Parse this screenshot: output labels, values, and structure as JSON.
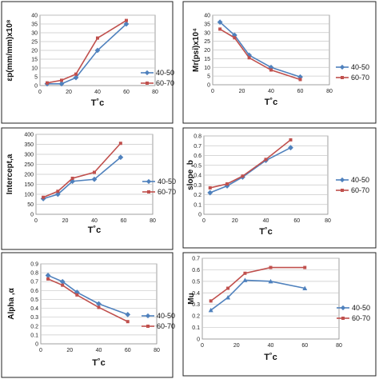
{
  "colors": {
    "series_blue": "#4f81bd",
    "series_red": "#c0504d",
    "grid": "#c8c8c8",
    "frame": "#888888"
  },
  "chart_data": [
    {
      "type": "line",
      "title": "",
      "ylabel": "εp(mm/mm)x10⁸",
      "xlabel": "T˚c",
      "xlim": [
        0,
        80
      ],
      "ylim": [
        0,
        40
      ],
      "xticks": [
        0,
        20,
        40,
        60,
        80
      ],
      "yticks": [
        0,
        5,
        10,
        15,
        20,
        25,
        30,
        35,
        40
      ],
      "grid": "horizontal",
      "legend": "right",
      "series": [
        {
          "name": "40-50",
          "x": [
            5,
            15,
            25,
            40,
            60
          ],
          "y": [
            1,
            1,
            4.5,
            20,
            35
          ]
        },
        {
          "name": "60-70",
          "x": [
            5,
            15,
            25,
            40,
            60
          ],
          "y": [
            1.5,
            3,
            6.5,
            27,
            37
          ]
        }
      ]
    },
    {
      "type": "line",
      "title": "",
      "ylabel": "Mr(psi)x10⁴",
      "xlabel": "T˚c",
      "xlim": [
        0,
        80
      ],
      "ylim": [
        0,
        40
      ],
      "xticks": [
        0,
        20,
        40,
        60,
        80
      ],
      "yticks": [
        0,
        5,
        10,
        15,
        20,
        25,
        30,
        35,
        40
      ],
      "grid": "horizontal",
      "legend": "right",
      "series": [
        {
          "name": "40-50",
          "x": [
            5,
            15,
            25,
            40,
            60
          ],
          "y": [
            36,
            28.5,
            17,
            10,
            4.5
          ]
        },
        {
          "name": "60-70",
          "x": [
            5,
            15,
            25,
            40,
            60
          ],
          "y": [
            32,
            27,
            15.5,
            8.5,
            3
          ]
        }
      ]
    },
    {
      "type": "line",
      "title": "",
      "ylabel": "Intercept,a",
      "xlabel": "T˚c",
      "xlim": [
        0,
        80
      ],
      "ylim": [
        0,
        400
      ],
      "xticks": [
        0,
        20,
        40,
        60,
        80
      ],
      "yticks": [
        0,
        50,
        100,
        150,
        200,
        250,
        300,
        350,
        400
      ],
      "grid": "horizontal",
      "legend": "right",
      "series": [
        {
          "name": "40-50",
          "x": [
            5,
            15,
            25,
            40,
            58
          ],
          "y": [
            78,
            100,
            165,
            175,
            285
          ]
        },
        {
          "name": "60-70",
          "x": [
            5,
            15,
            25,
            40,
            58
          ],
          "y": [
            85,
            115,
            180,
            210,
            355
          ]
        }
      ]
    },
    {
      "type": "line",
      "title": "",
      "ylabel": "slope ,b",
      "xlabel": "T˚c",
      "xlim": [
        0,
        80
      ],
      "ylim": [
        0,
        0.8
      ],
      "xticks": [
        0,
        20,
        40,
        60,
        80
      ],
      "yticks": [
        0,
        0.1,
        0.2,
        0.3,
        0.4,
        0.5,
        0.6,
        0.7,
        0.8
      ],
      "grid": "horizontal",
      "legend": "right",
      "series": [
        {
          "name": "40-50",
          "x": [
            4,
            15,
            25,
            40,
            56
          ],
          "y": [
            0.22,
            0.29,
            0.38,
            0.55,
            0.68
          ]
        },
        {
          "name": "60-70",
          "x": [
            4,
            15,
            25,
            40,
            56
          ],
          "y": [
            0.27,
            0.31,
            0.39,
            0.56,
            0.76
          ]
        }
      ]
    },
    {
      "type": "line",
      "title": "",
      "ylabel": "Alpha ,α",
      "xlabel": "T˚c",
      "xlim": [
        0,
        80
      ],
      "ylim": [
        0,
        0.9
      ],
      "xticks": [
        0,
        20,
        40,
        60,
        80
      ],
      "yticks": [
        0,
        0.1,
        0.2,
        0.3,
        0.4,
        0.5,
        0.6,
        0.7,
        0.8,
        0.9
      ],
      "grid": "horizontal",
      "legend": "right",
      "series": [
        {
          "name": "40-50",
          "x": [
            5,
            15,
            25,
            40,
            60
          ],
          "y": [
            0.77,
            0.7,
            0.58,
            0.45,
            0.33
          ]
        },
        {
          "name": "60-70",
          "x": [
            5,
            15,
            25,
            40,
            60
          ],
          "y": [
            0.73,
            0.66,
            0.55,
            0.41,
            0.25
          ]
        }
      ]
    },
    {
      "type": "line",
      "title": "",
      "ylabel": "Mu",
      "xlabel": "T˚c",
      "xlim": [
        0,
        80
      ],
      "ylim": [
        0,
        0.7
      ],
      "xticks": [
        0,
        20,
        40,
        60,
        80
      ],
      "yticks": [
        0,
        0.1,
        0.2,
        0.3,
        0.4,
        0.5,
        0.6,
        0.7
      ],
      "grid": "horizontal",
      "legend": "right",
      "series": [
        {
          "name": "40-50",
          "x": [
            5,
            15,
            25,
            40,
            60
          ],
          "y": [
            0.25,
            0.36,
            0.51,
            0.5,
            0.44
          ]
        },
        {
          "name": "60-70",
          "x": [
            5,
            15,
            25,
            40,
            60
          ],
          "y": [
            0.33,
            0.44,
            0.57,
            0.62,
            0.62
          ]
        }
      ]
    }
  ]
}
